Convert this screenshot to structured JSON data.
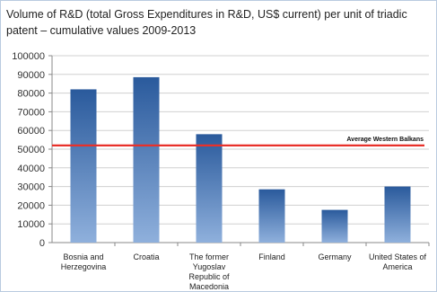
{
  "chart_data": {
    "type": "bar",
    "title": "Volume of R&D (total Gross Expenditures in R&D, US$ current) per unit of triadic patent – cumulative values 2009-2013",
    "categories": [
      [
        "Bosnia and",
        "Herzegovina"
      ],
      [
        "Croatia"
      ],
      [
        "The former",
        "Yugoslav",
        "Republic of",
        "Macedonia"
      ],
      [
        "Finland"
      ],
      [
        "Germany"
      ],
      [
        "United States of",
        "America"
      ]
    ],
    "values": [
      82000,
      88500,
      58000,
      28500,
      17500,
      30000
    ],
    "ylim": [
      0,
      100000
    ],
    "yticks": [
      "0",
      "10000",
      "20000",
      "30000",
      "40000",
      "50000",
      "60000",
      "70000",
      "80000",
      "90000",
      "100000"
    ],
    "grid": true,
    "reference_line": {
      "label": "Average Western Balkans",
      "value": 52000,
      "color": "#e8312a"
    },
    "bar_color_top": "#2a5a9c",
    "bar_color_bottom": "#8fb0dc"
  }
}
